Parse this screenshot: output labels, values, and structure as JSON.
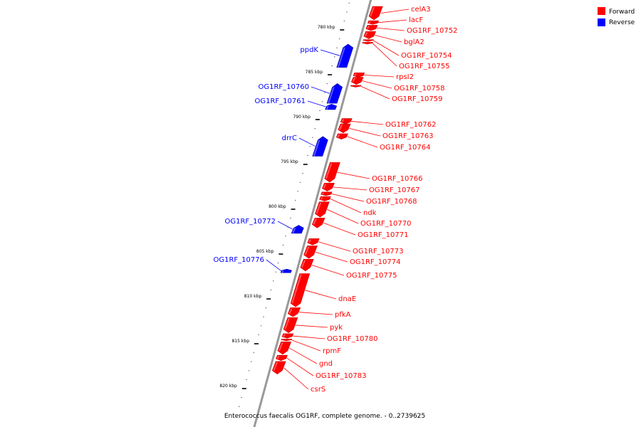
{
  "title": "Enterococcus faecalis OG1RF, complete genome. - 0..2739625",
  "legend": {
    "forward": {
      "label": "Forward",
      "color": "#ff0000"
    },
    "reverse": {
      "label": "Reverse",
      "color": "#0000ff"
    }
  },
  "colors": {
    "forward": "#ff0000",
    "reverse": "#0000ff",
    "backbone": "#999999"
  },
  "ticks": [
    {
      "kbp": 780,
      "label": "780 kbp"
    },
    {
      "kbp": 785,
      "label": "785 kbp"
    },
    {
      "kbp": 790,
      "label": "790 kbp"
    },
    {
      "kbp": 795,
      "label": "795 kbp"
    },
    {
      "kbp": 800,
      "label": "800 kbp"
    },
    {
      "kbp": 805,
      "label": "805 kbp"
    },
    {
      "kbp": 810,
      "label": "810 kbp"
    },
    {
      "kbp": 815,
      "label": "815 kbp"
    },
    {
      "kbp": 820,
      "label": "820 kbp"
    }
  ],
  "genes": [
    {
      "name": "celA3",
      "strand": "forward",
      "start_kbp": 777.7,
      "end_kbp": 779.2
    },
    {
      "name": "lacF",
      "strand": "forward",
      "start_kbp": 779.3,
      "end_kbp": 779.7
    },
    {
      "name": "OG1RF_10752",
      "strand": "forward",
      "start_kbp": 779.8,
      "end_kbp": 780.4
    },
    {
      "name": "bglA2",
      "strand": "forward",
      "start_kbp": 780.5,
      "end_kbp": 781.3
    },
    {
      "name": "OG1RF_10754",
      "strand": "forward",
      "start_kbp": 781.4,
      "end_kbp": 781.6
    },
    {
      "name": "OG1RF_10755",
      "strand": "forward",
      "start_kbp": 781.7,
      "end_kbp": 781.9
    },
    {
      "name": "ppdK",
      "strand": "reverse",
      "start_kbp": 781.9,
      "end_kbp": 784.5
    },
    {
      "name": "rpsI2",
      "strand": "forward",
      "start_kbp": 785.1,
      "end_kbp": 785.6
    },
    {
      "name": "OG1RF_10758",
      "strand": "forward",
      "start_kbp": 785.6,
      "end_kbp": 786.4
    },
    {
      "name": "OG1RF_10759",
      "strand": "forward",
      "start_kbp": 786.5,
      "end_kbp": 786.7
    },
    {
      "name": "OG1RF_10760",
      "strand": "reverse",
      "start_kbp": 786.3,
      "end_kbp": 788.5
    },
    {
      "name": "OG1RF_10761",
      "strand": "reverse",
      "start_kbp": 788.6,
      "end_kbp": 789.2
    },
    {
      "name": "OG1RF_10762",
      "strand": "forward",
      "start_kbp": 790.2,
      "end_kbp": 790.8
    },
    {
      "name": "OG1RF_10763",
      "strand": "forward",
      "start_kbp": 790.8,
      "end_kbp": 791.8
    },
    {
      "name": "OG1RF_10764",
      "strand": "forward",
      "start_kbp": 791.9,
      "end_kbp": 792.5
    },
    {
      "name": "drrC",
      "strand": "reverse",
      "start_kbp": 792.2,
      "end_kbp": 794.4
    },
    {
      "name": "OG1RF_10766",
      "strand": "forward",
      "start_kbp": 795.1,
      "end_kbp": 797.3
    },
    {
      "name": "OG1RF_10767",
      "strand": "forward",
      "start_kbp": 797.4,
      "end_kbp": 798.3
    },
    {
      "name": "OG1RF_10768",
      "strand": "forward",
      "start_kbp": 798.4,
      "end_kbp": 798.8
    },
    {
      "name": "ndk",
      "strand": "forward",
      "start_kbp": 798.9,
      "end_kbp": 799.4
    },
    {
      "name": "OG1RF_10770",
      "strand": "forward",
      "start_kbp": 799.5,
      "end_kbp": 801.2
    },
    {
      "name": "OG1RF_10771",
      "strand": "forward",
      "start_kbp": 801.3,
      "end_kbp": 802.4
    },
    {
      "name": "OG1RF_10772",
      "strand": "reverse",
      "start_kbp": 802.1,
      "end_kbp": 803.0
    },
    {
      "name": "OG1RF_10773",
      "strand": "forward",
      "start_kbp": 803.6,
      "end_kbp": 804.3
    },
    {
      "name": "OG1RF_10774",
      "strand": "forward",
      "start_kbp": 804.4,
      "end_kbp": 805.8
    },
    {
      "name": "OG1RF_10775",
      "strand": "forward",
      "start_kbp": 805.9,
      "end_kbp": 807.2
    },
    {
      "name": "OG1RF_10776",
      "strand": "reverse",
      "start_kbp": 807.0,
      "end_kbp": 807.4
    },
    {
      "name": "dnaE",
      "strand": "forward",
      "start_kbp": 807.5,
      "end_kbp": 811.2
    },
    {
      "name": "pfkA",
      "strand": "forward",
      "start_kbp": 811.3,
      "end_kbp": 812.3
    },
    {
      "name": "pyk",
      "strand": "forward",
      "start_kbp": 812.4,
      "end_kbp": 814.1
    },
    {
      "name": "OG1RF_10780",
      "strand": "forward",
      "start_kbp": 814.2,
      "end_kbp": 814.7
    },
    {
      "name": "rpmF",
      "strand": "forward",
      "start_kbp": 814.8,
      "end_kbp": 815.0
    },
    {
      "name": "gnd",
      "strand": "forward",
      "start_kbp": 815.1,
      "end_kbp": 816.5
    },
    {
      "name": "OG1RF_10783",
      "strand": "forward",
      "start_kbp": 816.6,
      "end_kbp": 817.2
    },
    {
      "name": "csrS",
      "strand": "forward",
      "start_kbp": 817.3,
      "end_kbp": 818.7
    }
  ]
}
